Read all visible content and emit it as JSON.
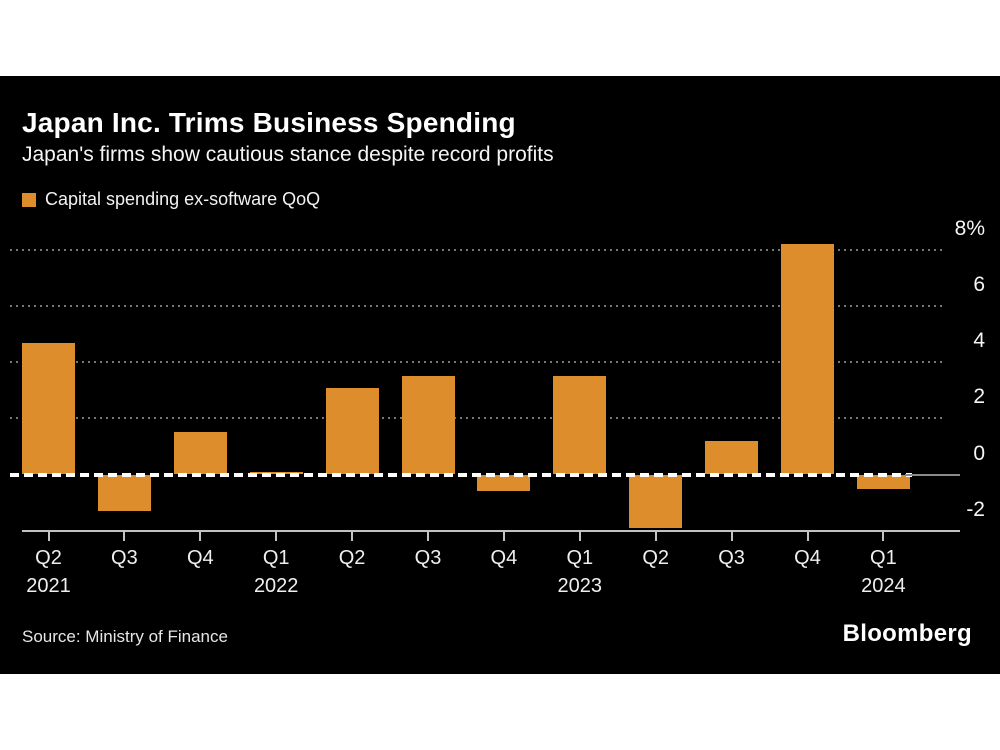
{
  "colors": {
    "page_background": "#ffffff",
    "panel_background": "#000000",
    "bar": "#DD8D2B",
    "grid": "#777777",
    "zero_line": "#ffffff",
    "axis": "#c3c3c3",
    "text": "#ffffff"
  },
  "header": {
    "title": "Japan Inc. Trims Business Spending",
    "subtitle": "Japan's firms show cautious stance despite record profits"
  },
  "legend": {
    "label": "Capital spending ex-software QoQ"
  },
  "chart_data": {
    "type": "bar",
    "title": "Japan Inc. Trims Business Spending",
    "subtitle": "Japan's firms show cautious stance despite record profits",
    "series_name": "Capital spending ex-software QoQ",
    "categories": [
      "Q2",
      "Q3",
      "Q4",
      "Q1",
      "Q2",
      "Q3",
      "Q4",
      "Q1",
      "Q2",
      "Q3",
      "Q4",
      "Q1"
    ],
    "year_labels": [
      {
        "index": 0,
        "year": "2021"
      },
      {
        "index": 3,
        "year": "2022"
      },
      {
        "index": 7,
        "year": "2023"
      },
      {
        "index": 11,
        "year": "2024"
      }
    ],
    "values": [
      4.7,
      -1.3,
      1.5,
      0.1,
      3.1,
      3.5,
      -0.6,
      3.5,
      -1.9,
      1.2,
      8.2,
      -0.5
    ],
    "unit": "%",
    "ytick_values": [
      8,
      6,
      4,
      2,
      0,
      -2
    ],
    "ytick_labels": [
      "8%",
      "6",
      "4",
      "2",
      "0",
      "-2"
    ],
    "ylim": [
      -2,
      8.5
    ],
    "grid": "dotted-horizontal",
    "zero_line": "dashed-white",
    "legend_position": "top-left",
    "ylabel": "",
    "xlabel": ""
  },
  "footer": {
    "source": "Source: Ministry of Finance",
    "brand": "Bloomberg"
  }
}
